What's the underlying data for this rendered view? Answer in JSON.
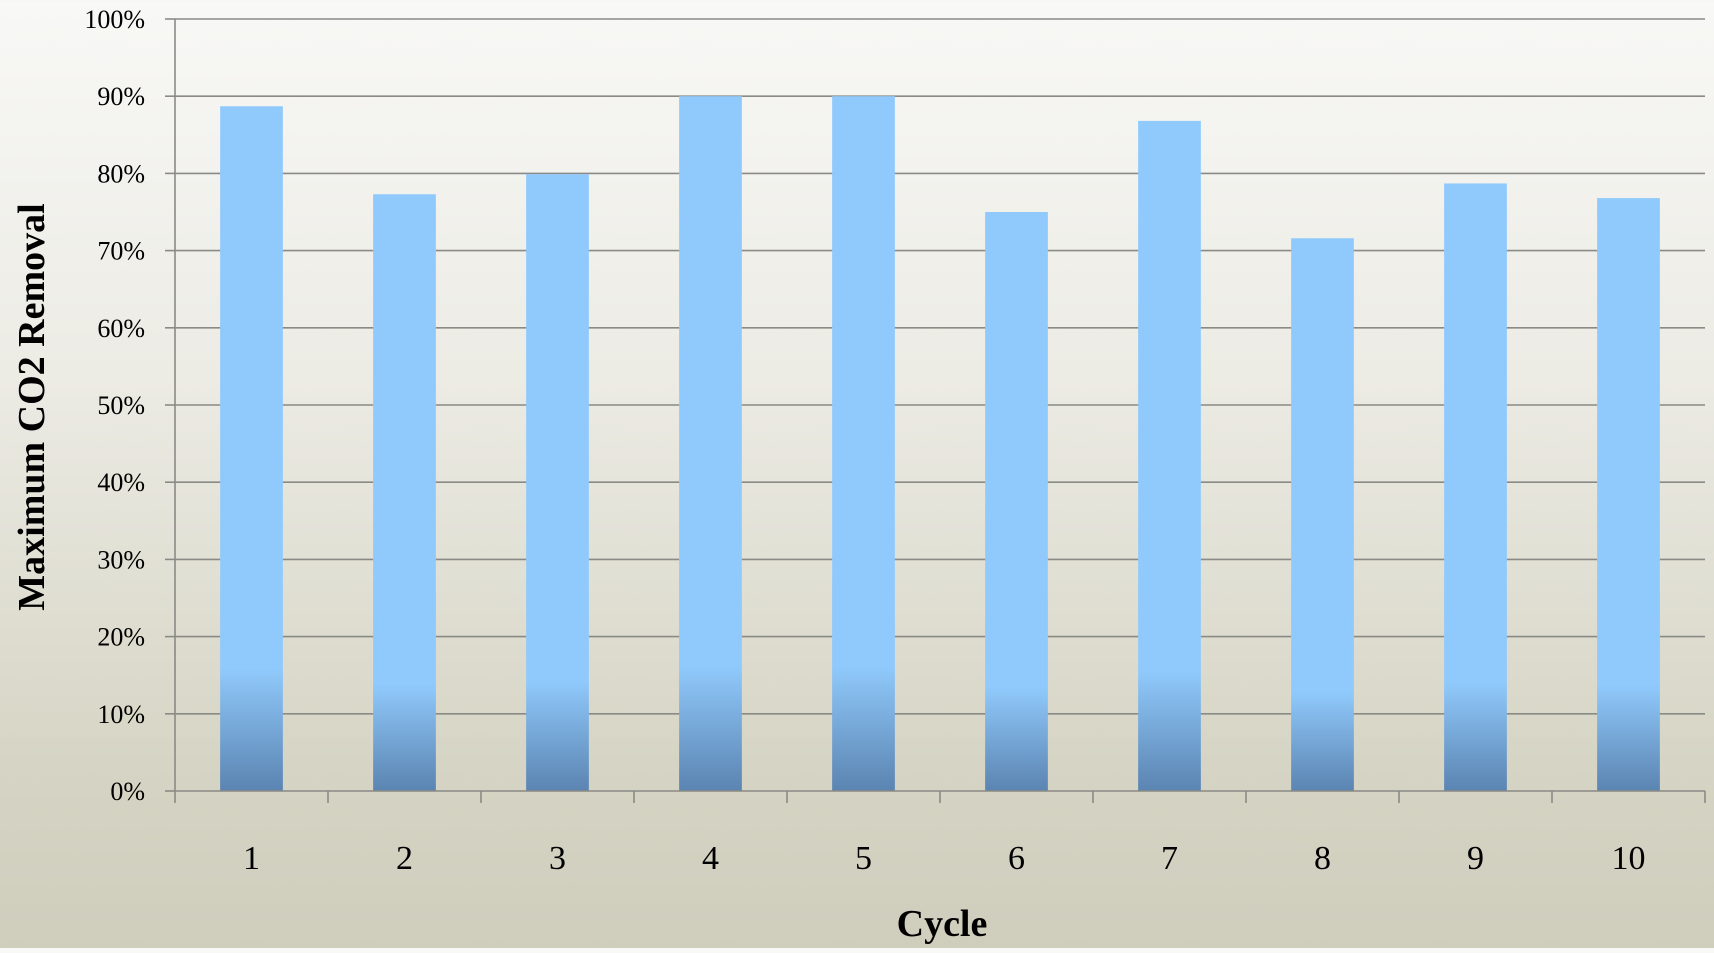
{
  "chart_data": {
    "type": "bar",
    "categories": [
      "1",
      "2",
      "3",
      "4",
      "5",
      "6",
      "7",
      "8",
      "9",
      "10"
    ],
    "values": [
      0.887,
      0.773,
      0.799,
      0.9,
      0.9,
      0.75,
      0.868,
      0.716,
      0.787,
      0.768
    ],
    "ylim": [
      0,
      1
    ],
    "yticks": [
      "0%",
      "10%",
      "20%",
      "30%",
      "40%",
      "50%",
      "60%",
      "70%",
      "80%",
      "90%",
      "100%"
    ],
    "xlabel": "Cycle",
    "ylabel": "Maximum CO2 Removal",
    "grid": true,
    "colors": {
      "bar_top": "#90cafc",
      "bar_bottom": "#5b84b1"
    }
  }
}
